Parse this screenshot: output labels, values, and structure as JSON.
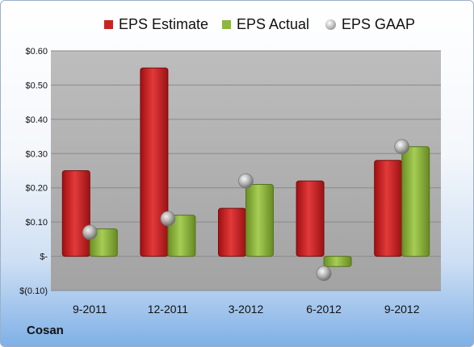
{
  "chart_data": {
    "type": "bar",
    "categories": [
      "9-2011",
      "12-2011",
      "3-2012",
      "6-2012",
      "9-2012"
    ],
    "series": [
      {
        "name": "EPS Estimate",
        "kind": "bar",
        "color": "#cc2222",
        "values": [
          0.25,
          0.55,
          0.14,
          0.22,
          0.28
        ]
      },
      {
        "name": "EPS Actual",
        "kind": "bar",
        "color": "#8db63c",
        "values": [
          0.08,
          0.12,
          0.21,
          -0.03,
          0.32
        ]
      },
      {
        "name": "EPS GAAP",
        "kind": "marker",
        "color": "#a8a8a8",
        "values": [
          0.07,
          0.11,
          0.22,
          -0.05,
          0.32
        ]
      }
    ],
    "ylim": [
      -0.1,
      0.6
    ],
    "yticks": [
      -0.1,
      0.0,
      0.1,
      0.2,
      0.3,
      0.4,
      0.5,
      0.6
    ],
    "ytick_labels": [
      "$(0.10)",
      "$-",
      "$0.10",
      "$0.20",
      "$0.30",
      "$0.40",
      "$0.50",
      "$0.60"
    ],
    "grid": true,
    "legend_position": "top",
    "title": "",
    "xlabel": "",
    "ylabel": ""
  },
  "company": "Cosan"
}
